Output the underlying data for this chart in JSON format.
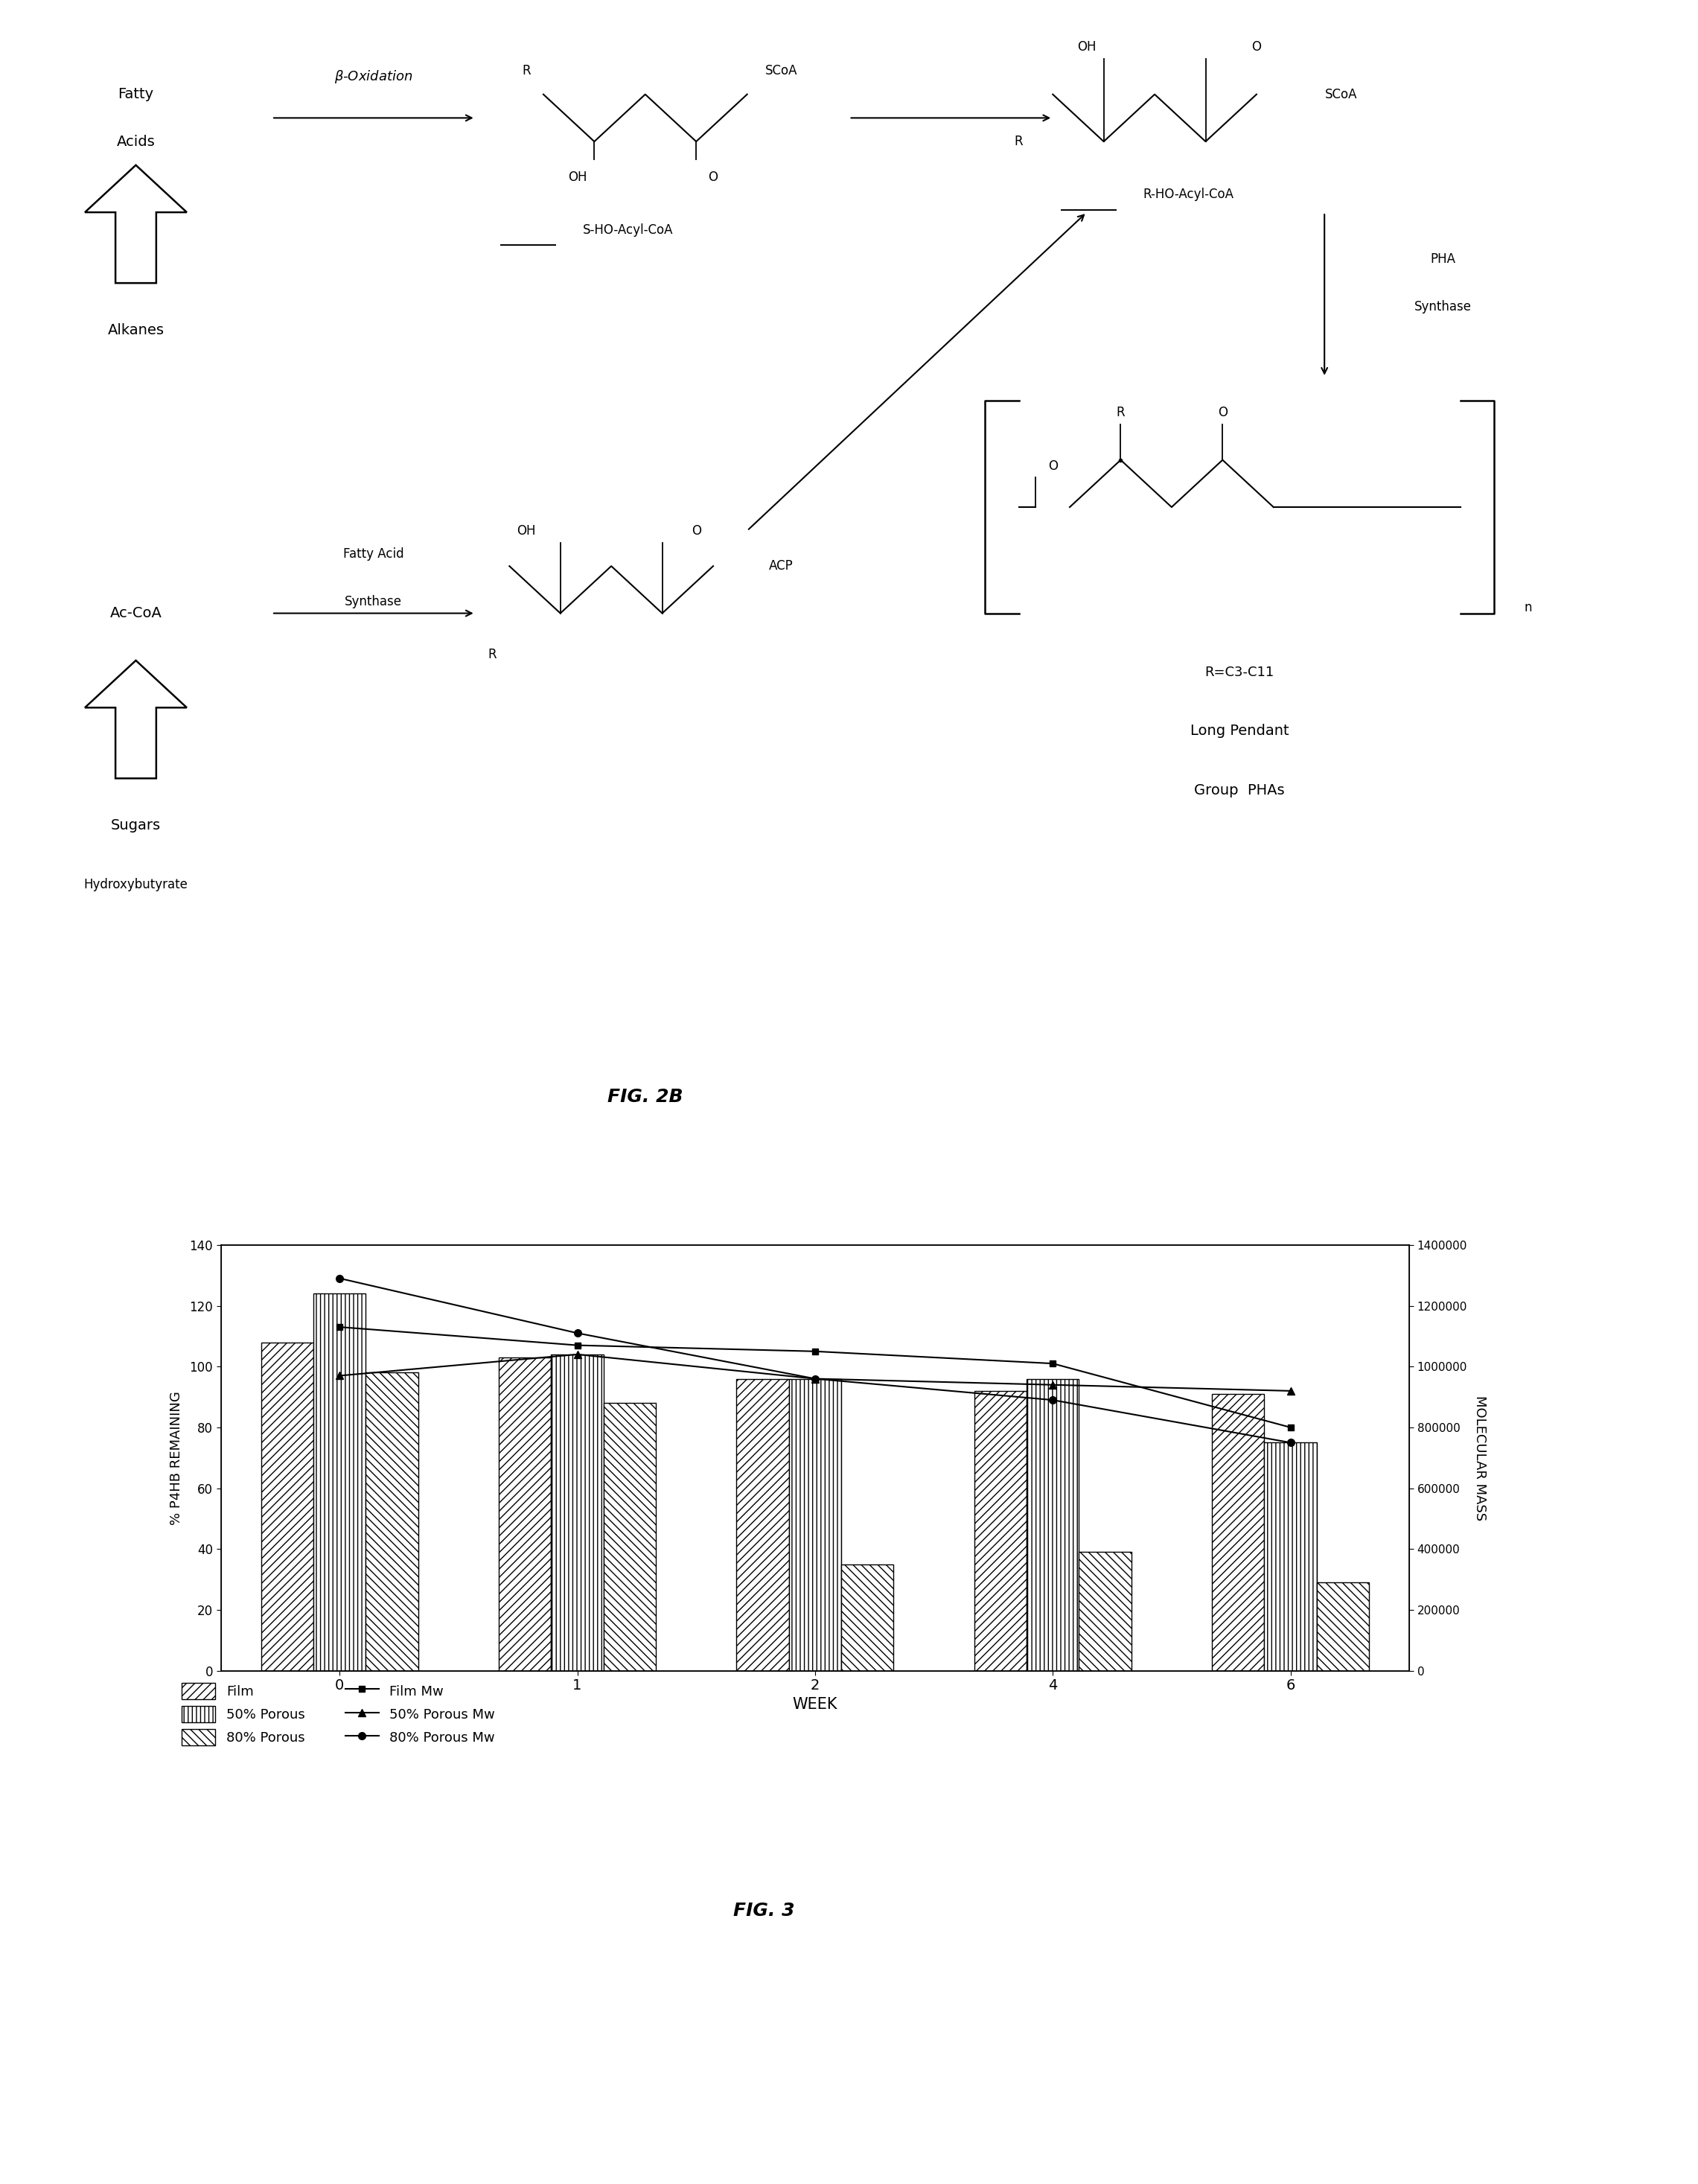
{
  "fig3": {
    "weeks": [
      0,
      1,
      2,
      4,
      6
    ],
    "bar_film": [
      108,
      103,
      96,
      92,
      91
    ],
    "bar_50porous": [
      124,
      104,
      96,
      96,
      75
    ],
    "bar_80porous": [
      98,
      88,
      35,
      39,
      29
    ],
    "line_film_mw": [
      1130000,
      1070000,
      1050000,
      1010000,
      800000
    ],
    "line_50porous_mw": [
      970000,
      1040000,
      960000,
      940000,
      920000
    ],
    "line_80porous_mw": [
      1290000,
      1110000,
      960000,
      890000,
      750000
    ],
    "ylim_left": [
      0,
      140
    ],
    "ylim_right": [
      0,
      1400000
    ],
    "yticks_left": [
      0,
      20,
      40,
      60,
      80,
      100,
      120,
      140
    ],
    "yticks_right": [
      0,
      200000,
      400000,
      600000,
      800000,
      1000000,
      1200000,
      1400000
    ],
    "xlabel": "WEEK",
    "ylabel_left": "% P4HB REMAINING",
    "ylabel_right": "MOLECULAR MASS",
    "fig3_label": "FIG. 3",
    "fig2b_label": "FIG. 2B"
  }
}
